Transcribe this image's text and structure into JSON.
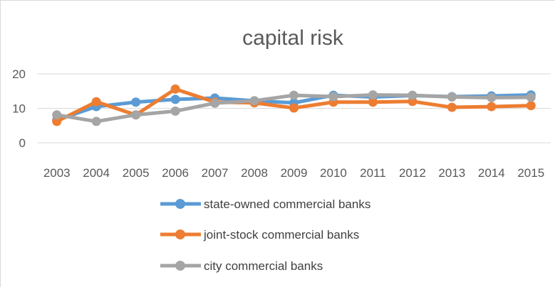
{
  "chart_data": {
    "type": "line",
    "title": "capital risk",
    "xlabel": "",
    "ylabel": "",
    "x": [
      "2003",
      "2004",
      "2005",
      "2006",
      "2007",
      "2008",
      "2009",
      "2010",
      "2011",
      "2012",
      "2013",
      "2014",
      "2015"
    ],
    "yticks": [
      "0",
      "10",
      "20"
    ],
    "ylim": [
      0,
      20
    ],
    "grid": true,
    "legend_position": "bottom",
    "series": [
      {
        "name": "state-owned commercial banks",
        "color": "#5b9bd5",
        "values": [
          6.6,
          10.5,
          11.8,
          12.6,
          13.0,
          12.2,
          11.6,
          13.8,
          13.3,
          13.7,
          13.4,
          13.6,
          13.9
        ]
      },
      {
        "name": "joint-stock commercial banks",
        "color": "#ed7d31",
        "values": [
          6.2,
          11.9,
          8.1,
          15.6,
          11.8,
          11.6,
          10.1,
          11.8,
          11.8,
          12.0,
          10.3,
          10.5,
          10.8
        ]
      },
      {
        "name": "city commercial banks",
        "color": "#a5a5a5",
        "values": [
          8.1,
          6.2,
          8.1,
          9.2,
          11.5,
          12.2,
          13.8,
          13.4,
          13.9,
          13.8,
          13.3,
          13.1,
          13.2
        ]
      }
    ]
  }
}
